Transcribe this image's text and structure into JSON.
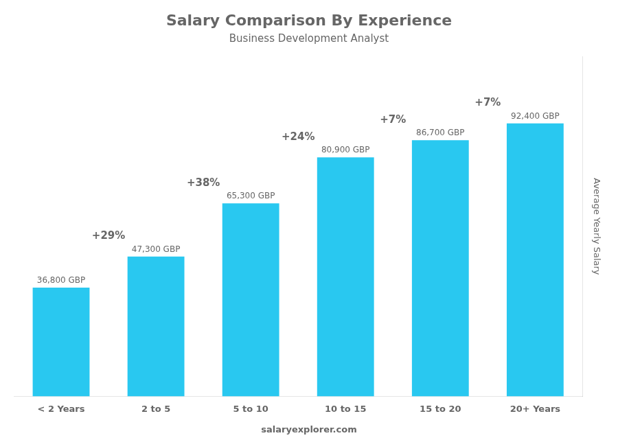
{
  "chart_data": {
    "type": "bar",
    "title": "Salary Comparison By Experience",
    "subtitle": "Business Development Analyst",
    "ylabel": "Average Yearly Salary",
    "categories": [
      "< 2 Years",
      "2 to 5",
      "5 to 10",
      "10 to 15",
      "15 to 20",
      "20+ Years"
    ],
    "values": [
      36800,
      47300,
      65300,
      80900,
      86700,
      92400
    ],
    "value_labels": [
      "36,800 GBP",
      "47,300 GBP",
      "65,300 GBP",
      "80,900 GBP",
      "86,700 GBP",
      "92,400 GBP"
    ],
    "data_labels": true,
    "annotations": [
      null,
      "+29%",
      "+38%",
      "+24%",
      "+7%",
      "+7%"
    ],
    "watermark": "salaryexplorer.com",
    "color": "#29C8F0",
    "ylim": [
      0,
      115000
    ],
    "grid": false,
    "tick_labels": "x"
  }
}
